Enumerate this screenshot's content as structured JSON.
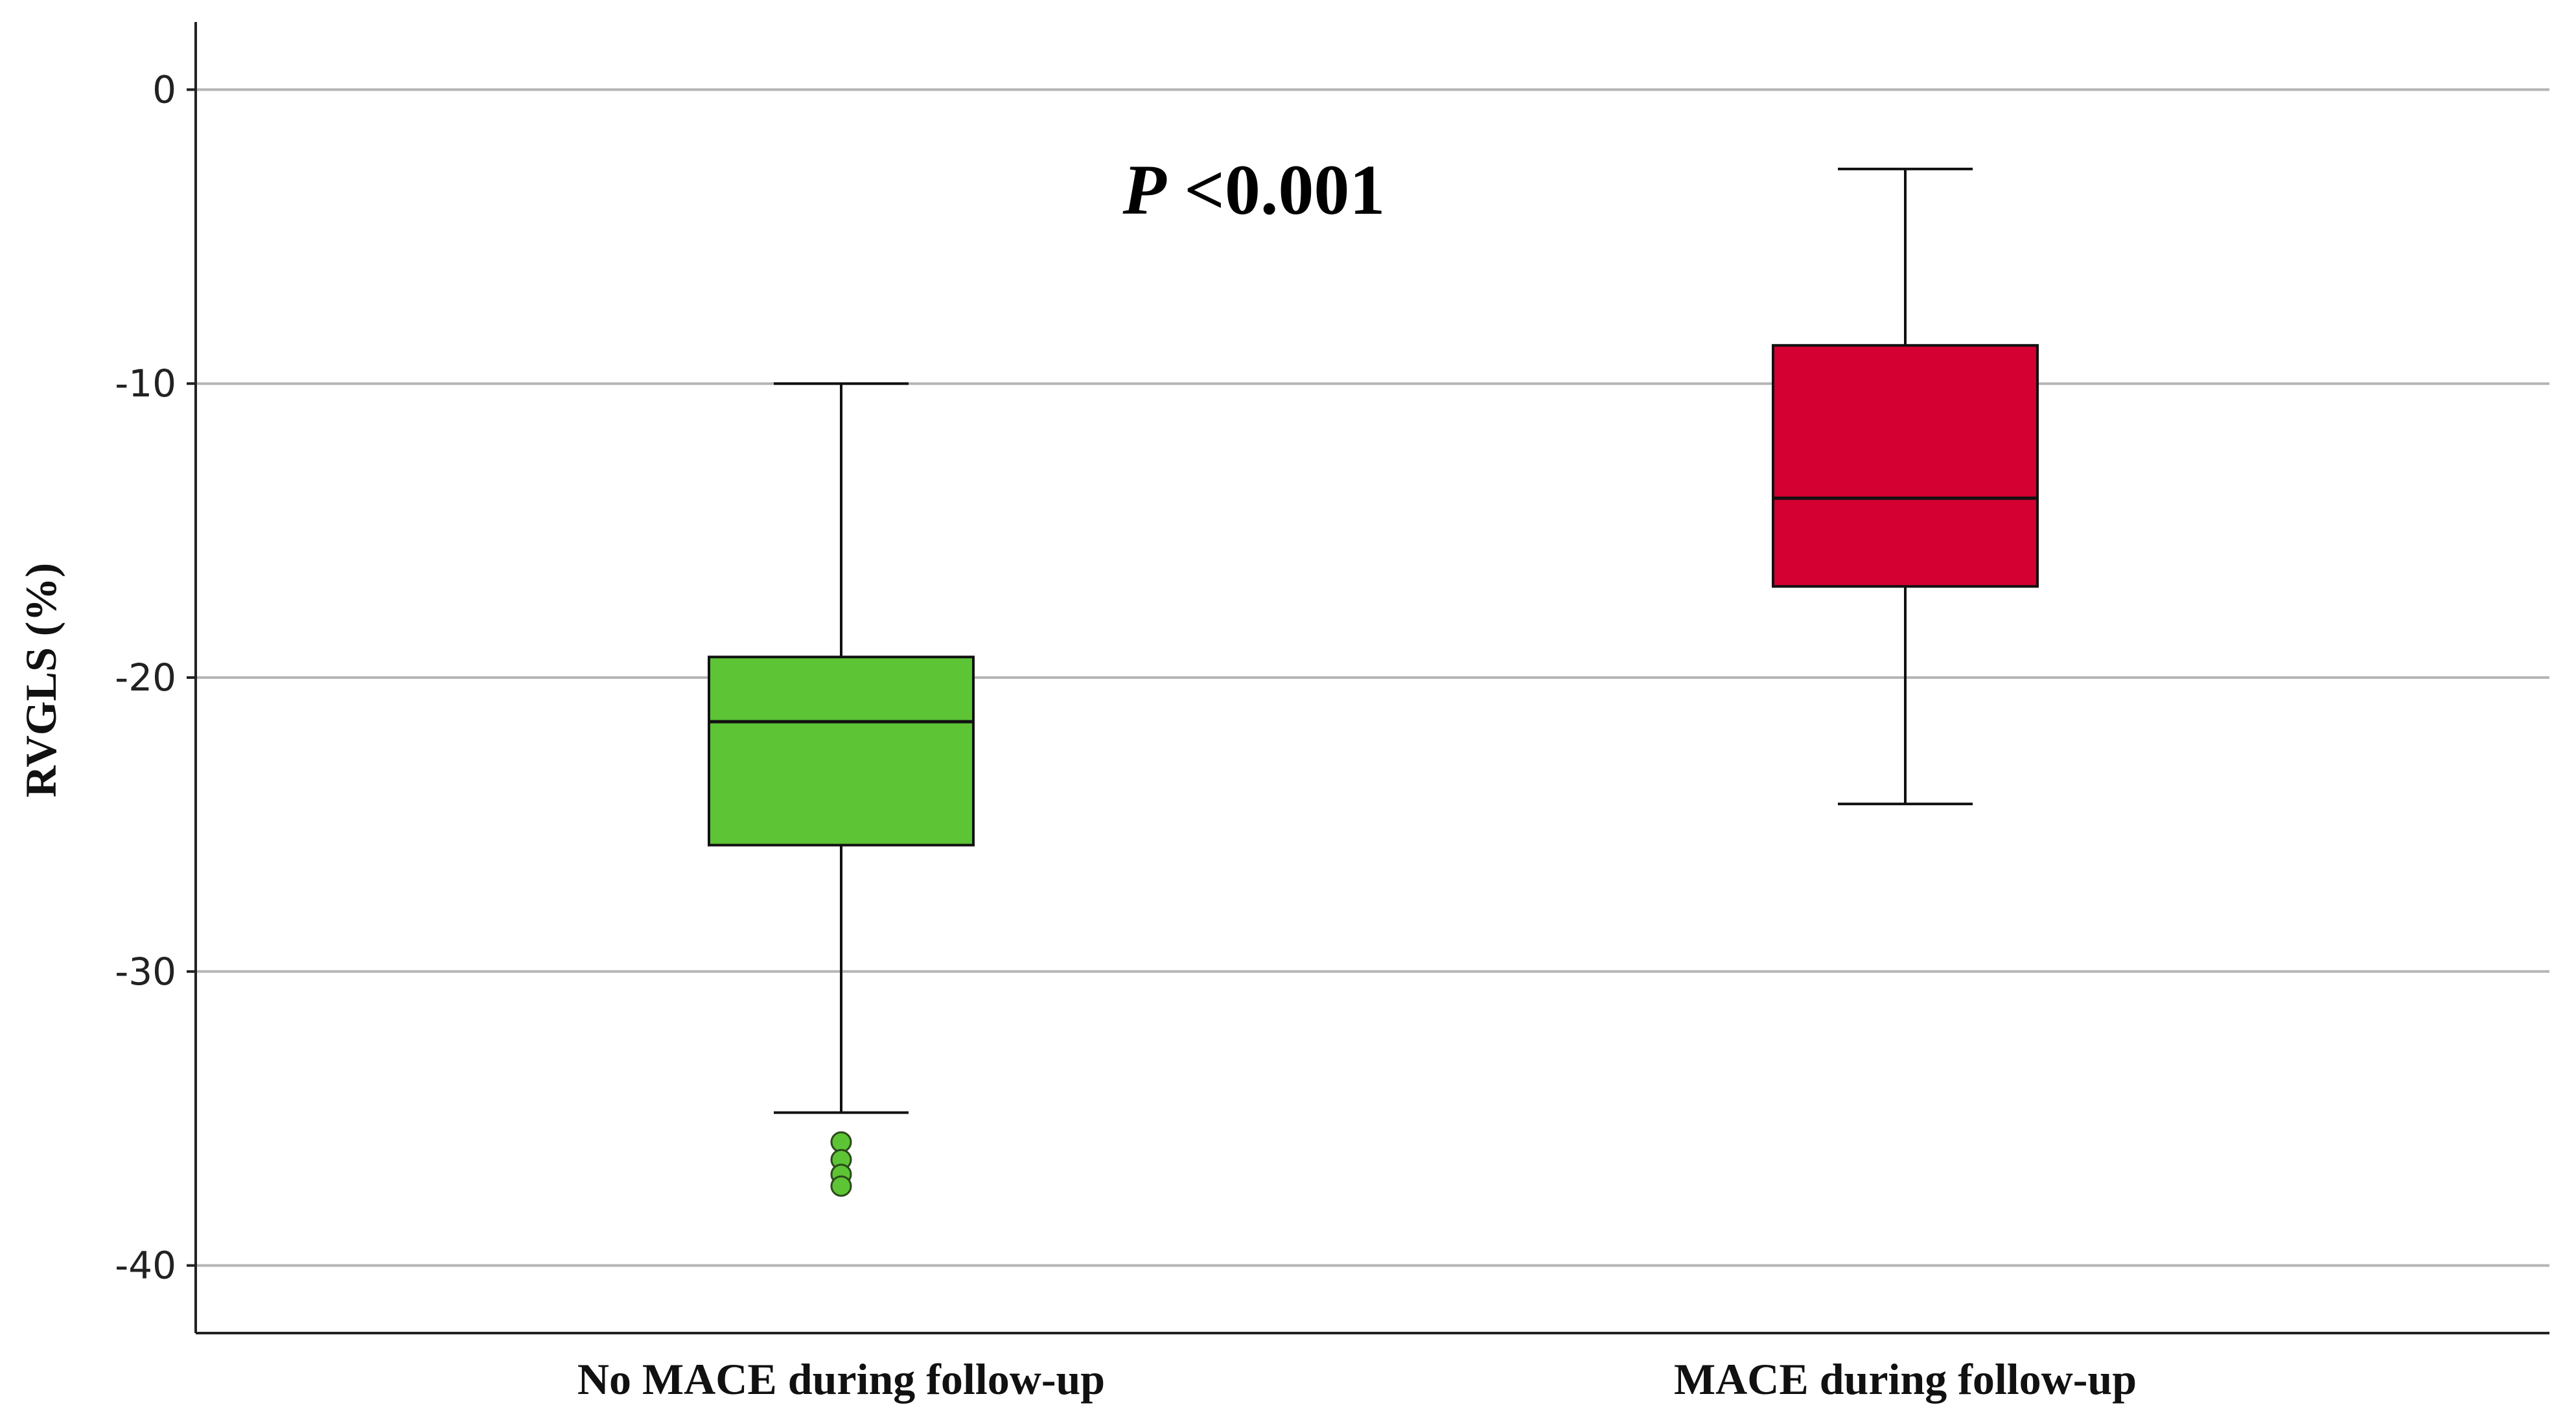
{
  "chart_data": {
    "type": "boxplot",
    "title": "",
    "xlabel": "",
    "ylabel": "RVGLS (%)",
    "ylim": [
      -42.3,
      2.3
    ],
    "yticks": [
      0,
      -10,
      -20,
      -30,
      -40
    ],
    "grid": true,
    "annotation": {
      "italic_part": "P",
      "rest": " <0.001"
    },
    "categories": [
      "No MACE during follow-up",
      "MACE during follow-up"
    ],
    "boxes": [
      {
        "name": "No MACE during follow-up",
        "color": "#5DC436",
        "whisker_high": -10,
        "q3": -19.3,
        "median": -21.5,
        "q1": -25.7,
        "whisker_low": -34.8,
        "outliers": [
          -35.8,
          -36.4,
          -36.9,
          -37.3
        ]
      },
      {
        "name": "MACE during follow-up",
        "color": "#D50032",
        "whisker_high": -2.7,
        "q3": -8.7,
        "median": -13.9,
        "q1": -16.9,
        "whisker_low": -24.3,
        "outliers": []
      }
    ]
  }
}
